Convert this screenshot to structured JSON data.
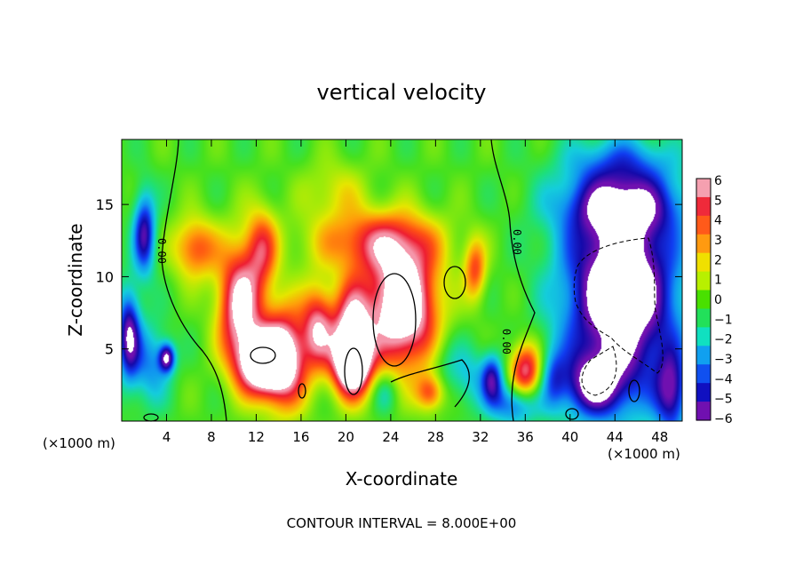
{
  "chart_data": {
    "type": "heatmap",
    "title": "vertical velocity",
    "xlabel": "X-coordinate",
    "ylabel": "Z-coordinate",
    "x_unit_label": "(×1000 m)",
    "x_ticks": [
      4,
      8,
      12,
      16,
      20,
      24,
      28,
      32,
      36,
      40,
      44,
      48
    ],
    "y_ticks": [
      5,
      10,
      15
    ],
    "xlim": [
      0,
      50
    ],
    "ylim": [
      0,
      19.5
    ],
    "colorbar": {
      "ticks": [
        6,
        5,
        4,
        3,
        2,
        1,
        0,
        -1,
        -2,
        -3,
        -4,
        -5,
        -6
      ],
      "range": [
        -6,
        6
      ],
      "colors": [
        "#f5a0b0",
        "#ef2a3a",
        "#ff5a1a",
        "#ff9a10",
        "#f0e000",
        "#b8f000",
        "#49e000",
        "#22e05a",
        "#10e0c0",
        "#10a0f0",
        "#1050f0",
        "#1010c0",
        "#7010b0"
      ]
    },
    "footer": "CONTOUR INTERVAL = 8.000E+00",
    "contour_labels": [
      "0.00",
      "0.00",
      "0.00"
    ],
    "blobs": [
      {
        "x": 2.0,
        "z": 13.0,
        "w": -5.5,
        "sx": 0.7,
        "sz": 2.0
      },
      {
        "x": 0.6,
        "z": 6.0,
        "w": -6.0,
        "sx": 0.7,
        "sz": 2.2
      },
      {
        "x": 2.5,
        "z": 4.0,
        "w": -3.0,
        "sx": 1.2,
        "sz": 2.0
      },
      {
        "x": 4.0,
        "z": 4.4,
        "w": -6.0,
        "sx": 0.5,
        "sz": 0.7
      },
      {
        "x": 6.5,
        "z": 12.0,
        "w": 4.2,
        "sx": 1.4,
        "sz": 1.5
      },
      {
        "x": 10.5,
        "z": 8.0,
        "w": 7.0,
        "sx": 1.4,
        "sz": 3.0
      },
      {
        "x": 12.5,
        "z": 4.0,
        "w": 8.0,
        "sx": 1.5,
        "sz": 1.5
      },
      {
        "x": 14.5,
        "z": 4.5,
        "w": 7.0,
        "sx": 1.5,
        "sz": 2.5
      },
      {
        "x": 12.5,
        "z": 12.0,
        "w": 4.0,
        "sx": 1.0,
        "sz": 2.0
      },
      {
        "x": 17.5,
        "z": 6.5,
        "w": 5.5,
        "sx": 1.0,
        "sz": 2.0
      },
      {
        "x": 20.5,
        "z": 6.0,
        "w": 7.0,
        "sx": 1.2,
        "sz": 2.5
      },
      {
        "x": 20.5,
        "z": 4.0,
        "w": 7.0,
        "sx": 1.2,
        "sz": 1.5
      },
      {
        "x": 25.0,
        "z": 8.0,
        "w": 9.0,
        "sx": 2.2,
        "sz": 3.0
      },
      {
        "x": 22.5,
        "z": 12.5,
        "w": 4.2,
        "sx": 4.0,
        "sz": 1.5
      },
      {
        "x": 19.0,
        "z": 16.0,
        "w": 1.8,
        "sx": 2.0,
        "sz": 1.5
      },
      {
        "x": 27.5,
        "z": 2.0,
        "w": 4.0,
        "sx": 0.9,
        "sz": 0.9
      },
      {
        "x": 31.5,
        "z": 10.5,
        "w": 4.0,
        "sx": 0.7,
        "sz": 1.5
      },
      {
        "x": 36.0,
        "z": 3.5,
        "w": 6.0,
        "sx": 1.0,
        "sz": 1.4
      },
      {
        "x": 33.0,
        "z": 3.0,
        "w": -5.0,
        "sx": 0.7,
        "sz": 1.2
      },
      {
        "x": 35.0,
        "z": 1.2,
        "w": -4.0,
        "sx": 1.5,
        "sz": 1.0
      },
      {
        "x": 38.5,
        "z": 3.0,
        "w": -2.5,
        "sx": 0.8,
        "sz": 1.5
      },
      {
        "x": 44.5,
        "z": 9.0,
        "w": -9.0,
        "sx": 3.5,
        "sz": 5.0
      },
      {
        "x": 42.0,
        "z": 2.5,
        "w": -5.0,
        "sx": 2.0,
        "sz": 1.5
      },
      {
        "x": 49.0,
        "z": 2.0,
        "w": -5.0,
        "sx": 1.0,
        "sz": 2.0
      },
      {
        "x": 44.5,
        "z": 15.0,
        "w": -4.0,
        "sx": 4.0,
        "sz": 1.5
      },
      {
        "x": 44.5,
        "z": 18.0,
        "w": -2.0,
        "sx": 3.5,
        "sz": 1.2
      },
      {
        "x": 31.0,
        "z": 3.0,
        "w": -2.0,
        "sx": 1.0,
        "sz": 1.5
      },
      {
        "x": 29.0,
        "z": 4.0,
        "w": -1.5,
        "sx": 1.0,
        "sz": 1.5
      },
      {
        "x": 23.5,
        "z": 2.0,
        "w": -2.0,
        "sx": 0.8,
        "sz": 1.0
      }
    ]
  }
}
